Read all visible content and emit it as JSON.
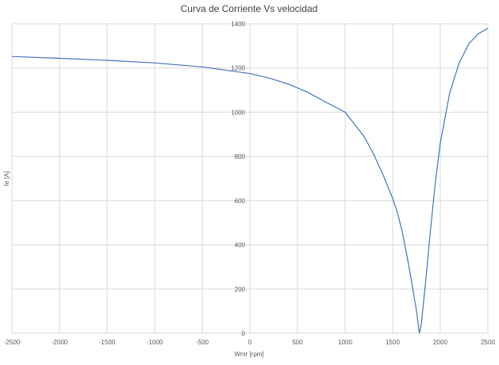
{
  "chart_data": {
    "type": "line",
    "title": "Curva de Corriente Vs velocidad",
    "xlabel": "Wmr [rpm]",
    "ylabel": "Ie [A]",
    "xlim": [
      -2500,
      2500
    ],
    "ylim": [
      0,
      1400
    ],
    "xticks": [
      -2500,
      -2000,
      -1500,
      -1000,
      -500,
      0,
      500,
      1000,
      1500,
      2000,
      2500
    ],
    "yticks": [
      0,
      200,
      400,
      600,
      800,
      1000,
      1200,
      1400
    ],
    "grid": true,
    "legend": "none",
    "series": [
      {
        "color": "#4472c4",
        "x": [
          -2500,
          -2000,
          -1500,
          -1000,
          -500,
          0,
          200,
          400,
          600,
          800,
          1000,
          1200,
          1300,
          1400,
          1500,
          1550,
          1600,
          1650,
          1700,
          1750,
          1780,
          1800,
          1850,
          1900,
          1950,
          2000,
          2100,
          2200,
          2300,
          2400,
          2500
        ],
        "y": [
          1252,
          1244,
          1235,
          1223,
          1205,
          1175,
          1155,
          1128,
          1092,
          1045,
          1000,
          890,
          810,
          715,
          610,
          545,
          460,
          350,
          230,
          100,
          0,
          40,
          250,
          480,
          690,
          860,
          1090,
          1225,
          1310,
          1355,
          1380
        ]
      }
    ]
  }
}
